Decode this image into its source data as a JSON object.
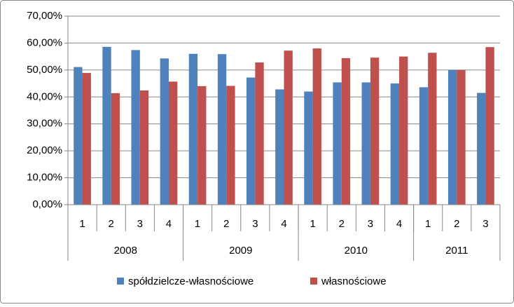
{
  "chart_data": {
    "type": "bar",
    "groups": [
      {
        "name": "2008",
        "categories": [
          "1",
          "2",
          "3",
          "4"
        ]
      },
      {
        "name": "2009",
        "categories": [
          "1",
          "2",
          "3",
          "4"
        ]
      },
      {
        "name": "2010",
        "categories": [
          "1",
          "2",
          "3",
          "4"
        ]
      },
      {
        "name": "2011",
        "categories": [
          "1",
          "2",
          "3"
        ]
      }
    ],
    "series": [
      {
        "name": "spółdzielcze-własnościowe",
        "color": "#4f81bd",
        "values": [
          51.1,
          58.6,
          57.4,
          54.3,
          56.0,
          55.9,
          47.2,
          42.8,
          42.0,
          45.4,
          45.4,
          45.0,
          43.6,
          50.0,
          41.5
        ]
      },
      {
        "name": "własnościowe",
        "color": "#c0504d",
        "values": [
          48.9,
          41.4,
          42.4,
          45.7,
          44.0,
          44.1,
          52.8,
          57.2,
          58.0,
          54.4,
          54.6,
          55.0,
          56.4,
          50.0,
          58.5
        ]
      }
    ],
    "ylim": [
      0,
      70
    ],
    "yticks": [
      {
        "value": 0,
        "label": "0,00%"
      },
      {
        "value": 10,
        "label": "10,00%"
      },
      {
        "value": 20,
        "label": "20,00%"
      },
      {
        "value": 30,
        "label": "30,00%"
      },
      {
        "value": 40,
        "label": "40,00%"
      },
      {
        "value": 50,
        "label": "50,00%"
      },
      {
        "value": 60,
        "label": "60,00%"
      },
      {
        "value": 70,
        "label": "70,00%"
      }
    ],
    "grid": true,
    "legend": "bottom"
  }
}
